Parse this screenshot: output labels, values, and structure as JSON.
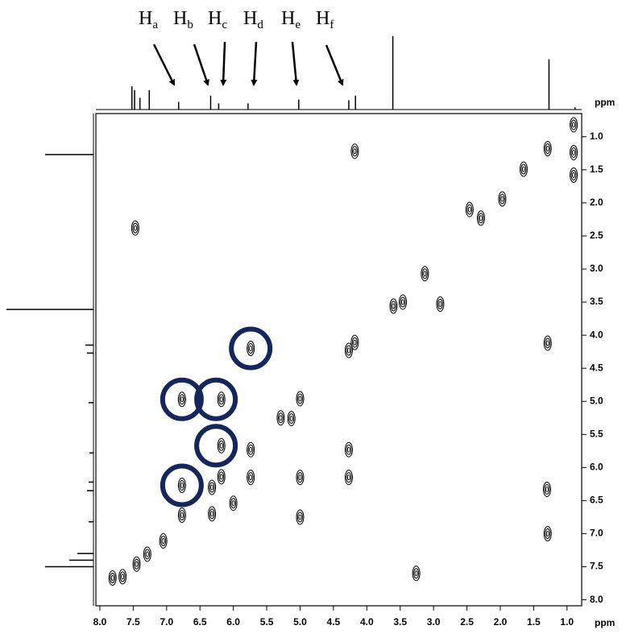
{
  "chart_data": {
    "type": "nmr2d",
    "xlabel": "ppm",
    "ylabel": "ppm",
    "xlim": [
      8.06,
      0.78
    ],
    "ylim": [
      0.65,
      8.09
    ],
    "xticks": [
      {
        "value": 8,
        "label": "8.0"
      },
      7.5,
      {
        "value": 7,
        "label": "7.0"
      },
      6.5,
      {
        "value": 6,
        "label": "6.0"
      },
      5.5,
      {
        "value": 5,
        "label": "5.0"
      },
      4.5,
      {
        "value": 4,
        "label": "4.0"
      },
      3.5,
      {
        "value": 3,
        "label": "3.0"
      },
      2.5,
      {
        "value": 2,
        "label": "2.0"
      },
      1.5,
      {
        "value": 1,
        "label": "1.0"
      }
    ],
    "yticks": [
      {
        "value": 1,
        "label": "1.0"
      },
      1.5,
      {
        "value": 2,
        "label": "2.0"
      },
      2.5,
      {
        "value": 3,
        "label": "3.0"
      },
      3.5,
      {
        "value": 4,
        "label": "4.0"
      },
      4.5,
      {
        "value": 5,
        "label": "5.0"
      },
      5.5,
      {
        "value": 6,
        "label": "6.0"
      },
      6.5,
      {
        "value": 7,
        "label": "7.0"
      },
      7.5,
      {
        "value": 8,
        "label": "8.0"
      }
    ],
    "color": "#000000",
    "highlight_color": "#14275a",
    "peaks": {
      "x": [
        4.18,
        1.29,
        5.74,
        6.77,
        6.18,
        5.0,
        6.18,
        5.74,
        4.27,
        6.77,
        6.32,
        6.18,
        5.74,
        5.0,
        4.27,
        6.77,
        6.32,
        5.0,
        1.29,
        6.0,
        1.3,
        3.26,
        2.9,
        2.46,
        7.47,
        0.9,
        0.9,
        0.9,
        1.29,
        1.65,
        1.97,
        2.29,
        3.13,
        3.46,
        3.6,
        4.18,
        4.27,
        5.13,
        5.29,
        7.05,
        7.29,
        7.45,
        7.66,
        7.81
      ],
      "y": [
        1.22,
        4.12,
        4.2,
        4.97,
        4.97,
        4.96,
        5.67,
        5.73,
        5.73,
        6.27,
        6.3,
        6.14,
        6.15,
        6.15,
        6.15,
        6.72,
        6.7,
        6.75,
        7.0,
        6.54,
        6.33,
        7.6,
        3.53,
        2.1,
        2.38,
        1.24,
        1.58,
        0.82,
        1.18,
        1.49,
        1.94,
        2.23,
        3.07,
        3.5,
        3.56,
        4.11,
        4.23,
        5.26,
        5.25,
        7.11,
        7.31,
        7.46,
        7.65,
        7.67
      ]
    },
    "circles": {
      "x": [
        5.74,
        6.77,
        6.26,
        6.26,
        6.77
      ],
      "y": [
        4.2,
        4.97,
        4.97,
        5.67,
        6.27
      ]
    },
    "top_spectrum": {
      "x": [
        7.52,
        7.48,
        7.4,
        7.26,
        6.82,
        6.34,
        6.22,
        5.78,
        5.02,
        4.27,
        4.17,
        3.61,
        1.27,
        0.88
      ],
      "intensity": [
        30,
        25,
        15,
        25,
        10,
        18,
        8,
        8,
        13,
        12,
        18,
        95,
        65,
        3
      ],
      "ylim": [
        0,
        100
      ]
    },
    "left_spectrum": {
      "y": [
        1.27,
        3.61,
        4.15,
        4.27,
        5.02,
        5.78,
        6.22,
        6.35,
        6.82,
        7.3,
        7.4,
        7.5
      ],
      "intensity": [
        60,
        108,
        10,
        8,
        6,
        5,
        6,
        8,
        6,
        20,
        30,
        60
      ],
      "xlim": [
        0,
        110
      ]
    },
    "annotations": [
      {
        "text": "H",
        "sub": "a"
      },
      {
        "text": "H",
        "sub": "b"
      },
      {
        "text": "H",
        "sub": "c"
      },
      {
        "text": "H",
        "sub": "d"
      },
      {
        "text": "H",
        "sub": "e"
      },
      {
        "text": "H",
        "sub": "f"
      }
    ]
  }
}
